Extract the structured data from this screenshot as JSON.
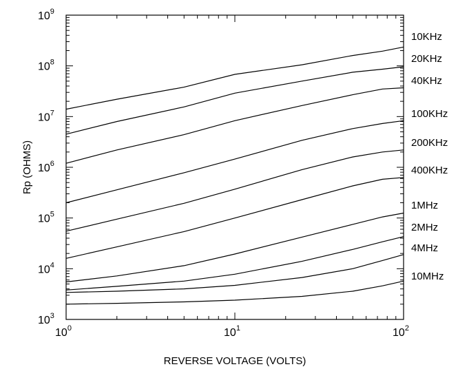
{
  "chart_data": {
    "type": "line",
    "x_scale": "log",
    "y_scale": "log",
    "xlim": [
      1,
      100
    ],
    "ylim": [
      1000,
      1000000000
    ],
    "xlabel": "REVERSE VOLTAGE (VOLTS)",
    "ylabel": "Rp (OHMS)",
    "grid": false,
    "x_ticks": [
      {
        "base": "10",
        "exp": "0",
        "value": 1
      },
      {
        "base": "10",
        "exp": "1",
        "value": 10
      },
      {
        "base": "10",
        "exp": "2",
        "value": 100
      }
    ],
    "y_ticks": [
      {
        "base": "10",
        "exp": "3",
        "value": 1000
      },
      {
        "base": "10",
        "exp": "4",
        "value": 10000
      },
      {
        "base": "10",
        "exp": "5",
        "value": 100000
      },
      {
        "base": "10",
        "exp": "6",
        "value": 1000000
      },
      {
        "base": "10",
        "exp": "7",
        "value": 10000000
      },
      {
        "base": "10",
        "exp": "8",
        "value": 100000000
      },
      {
        "base": "10",
        "exp": "9",
        "value": 1000000000
      }
    ],
    "x": [
      1,
      2,
      5,
      10,
      25,
      50,
      75,
      100
    ],
    "series": [
      {
        "name": "10KHz",
        "values": [
          14000000,
          22000000,
          38000000,
          68000000,
          105000000,
          160000000,
          195000000,
          235000000
        ]
      },
      {
        "name": "20KHz",
        "values": [
          4500000,
          8000000,
          15500000,
          29000000,
          50000000,
          75000000,
          86000000,
          96000000
        ]
      },
      {
        "name": "40KHz",
        "values": [
          1200000,
          2200000,
          4400000,
          8300000,
          16500000,
          27000000,
          35000000,
          37000000
        ]
      },
      {
        "name": "100KHz",
        "values": [
          200000,
          360000,
          780000,
          1450000,
          3400000,
          5800000,
          7300000,
          8300000
        ]
      },
      {
        "name": "200KHz",
        "values": [
          55000,
          95000,
          195000,
          370000,
          900000,
          1600000,
          2000000,
          2200000
        ]
      },
      {
        "name": "400KHz",
        "values": [
          16000,
          27000,
          54000,
          100000,
          230000,
          430000,
          580000,
          630000
        ]
      },
      {
        "name": "1MHz",
        "values": [
          5500,
          7200,
          11500,
          19500,
          42000,
          75000,
          105000,
          125000
        ]
      },
      {
        "name": "2MHz",
        "values": [
          3800,
          4500,
          5700,
          7800,
          14000,
          24000,
          34000,
          43000
        ]
      },
      {
        "name": "4MHz",
        "values": [
          3400,
          3600,
          4000,
          4700,
          6700,
          10000,
          14500,
          19000
        ]
      },
      {
        "name": "10MHz",
        "values": [
          2000,
          2080,
          2220,
          2400,
          2850,
          3600,
          4600,
          5700
        ]
      }
    ]
  }
}
